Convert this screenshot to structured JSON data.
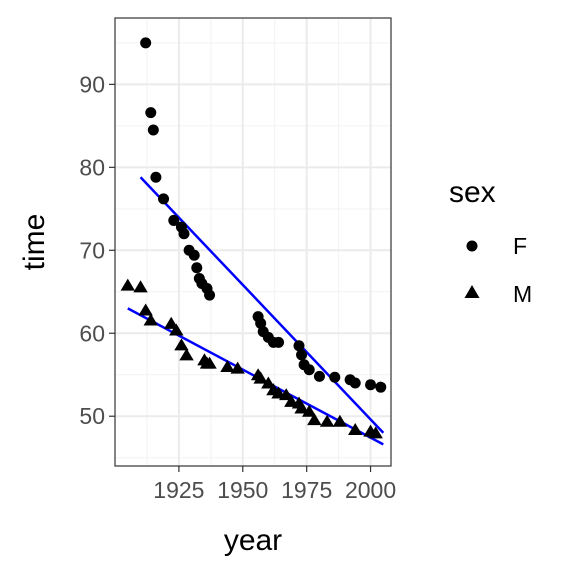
{
  "chart_data": {
    "type": "scatter",
    "title": "",
    "xlabel": "year",
    "ylabel": "time",
    "xlim": [
      1900,
      2008
    ],
    "ylim": [
      44,
      98
    ],
    "x_ticks": [
      1925,
      1950,
      1975,
      2000
    ],
    "x_tick_labels": [
      "1925",
      "1950",
      "1975",
      "2000"
    ],
    "y_ticks": [
      50,
      60,
      70,
      80,
      90
    ],
    "y_tick_labels": [
      "50",
      "60",
      "70",
      "80",
      "90"
    ],
    "grid": true,
    "legend": {
      "title": "sex",
      "placement": "right",
      "entries": [
        {
          "label": "F",
          "shape": "circle"
        },
        {
          "label": "M",
          "shape": "triangle"
        }
      ]
    },
    "colors": {
      "points": "#000000",
      "fit_line": "#0000ff",
      "grid_major": "#ebebeb",
      "grid_minor": "#f2f2f2",
      "panel_border": "#333333"
    },
    "series": [
      {
        "name": "F",
        "shape": "circle",
        "x": [
          1912,
          1914,
          1915,
          1916,
          1919,
          1923,
          1926,
          1927,
          1929,
          1931,
          1932,
          1933,
          1934,
          1936,
          1937,
          1956,
          1957,
          1958,
          1960,
          1962,
          1964,
          1972,
          1973,
          1974,
          1976,
          1980,
          1986,
          1992,
          1994,
          2000,
          2004
        ],
        "y": [
          95.0,
          86.6,
          84.5,
          78.8,
          76.2,
          73.6,
          72.8,
          72.0,
          70.0,
          69.4,
          67.9,
          66.6,
          66.0,
          65.4,
          64.6,
          62.0,
          61.2,
          60.2,
          59.5,
          58.9,
          58.9,
          58.5,
          57.4,
          56.2,
          55.6,
          54.8,
          54.7,
          54.4,
          54.0,
          53.8,
          53.5
        ]
      },
      {
        "name": "M",
        "shape": "triangle",
        "x": [
          1905,
          1910,
          1912,
          1914,
          1922,
          1924,
          1926,
          1928,
          1935,
          1936,
          1937,
          1944,
          1948,
          1956,
          1957,
          1960,
          1962,
          1964,
          1967,
          1969,
          1972,
          1973,
          1976,
          1978,
          1983,
          1988,
          1994,
          2000,
          2002
        ],
        "y": [
          65.8,
          65.6,
          62.8,
          61.6,
          61.2,
          60.4,
          58.6,
          57.4,
          56.8,
          56.4,
          56.4,
          56.0,
          55.8,
          55.0,
          54.6,
          54.0,
          53.2,
          52.8,
          52.6,
          51.8,
          51.6,
          51.0,
          50.6,
          49.6,
          49.4,
          49.4,
          48.4,
          48.2,
          48.0
        ]
      }
    ],
    "fit_lines": [
      {
        "series": "F",
        "x": [
          1910,
          2005
        ],
        "y": [
          78.8,
          48.0
        ]
      },
      {
        "series": "M",
        "x": [
          1905,
          2005
        ],
        "y": [
          63.0,
          46.6
        ]
      }
    ]
  }
}
